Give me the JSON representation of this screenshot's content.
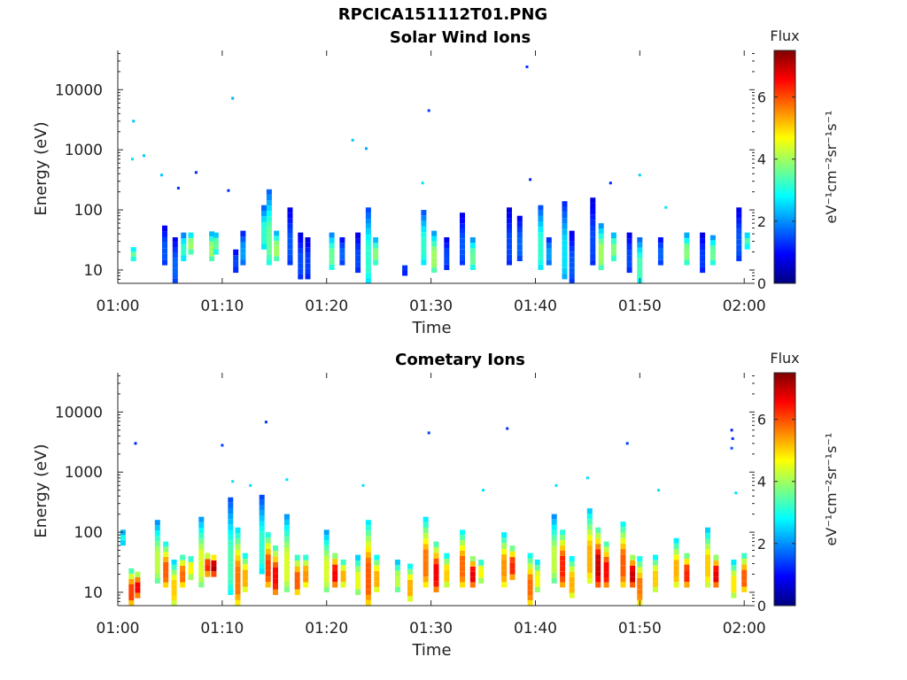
{
  "figure_title": "RPCICA151112T01.PNG",
  "chart_data": [
    {
      "type": "heatmap",
      "title": "Solar Wind Ions",
      "xlabel": "Time",
      "ylabel": "Energy (eV)",
      "xticks": [
        "01:00",
        "01:10",
        "01:20",
        "01:30",
        "01:40",
        "01:50",
        "02:00"
      ],
      "xlim_minutes": [
        0,
        61
      ],
      "yticks": [
        {
          "v": 10,
          "label": "10"
        },
        {
          "v": 100,
          "label": "100"
        },
        {
          "v": 1000,
          "label": "1000"
        },
        {
          "v": 10000,
          "label": "10000"
        }
      ],
      "yscale": "log",
      "ylim": [
        6,
        45000
      ],
      "colorbar": {
        "title": "Flux",
        "label": "eV⁻¹cm⁻²sr⁻¹s⁻¹",
        "range": [
          0,
          7.5
        ],
        "ticks": [
          "0",
          "2",
          "4",
          "6"
        ],
        "colormap": "jet"
      },
      "columns": [
        {
          "t": 1.5,
          "lo": 14,
          "hi": 24,
          "v": 3.4
        },
        {
          "t": 4.5,
          "lo": 12,
          "hi": 55,
          "v": 1.5
        },
        {
          "t": 5.5,
          "lo": 6,
          "hi": 35,
          "v": 1.6
        },
        {
          "t": 6.3,
          "lo": 14,
          "hi": 42,
          "v": 3.0
        },
        {
          "t": 7.0,
          "lo": 18,
          "hi": 42,
          "v": 3.8
        },
        {
          "t": 9.0,
          "lo": 14,
          "hi": 44,
          "v": 3.8
        },
        {
          "t": 9.4,
          "lo": 18,
          "hi": 42,
          "v": 3.4
        },
        {
          "t": 11.3,
          "lo": 9,
          "hi": 22,
          "v": 1.4
        },
        {
          "t": 12.0,
          "lo": 12,
          "hi": 45,
          "v": 2.0
        },
        {
          "t": 14.0,
          "lo": 22,
          "hi": 120,
          "v": 3.0
        },
        {
          "t": 14.5,
          "lo": 12,
          "hi": 220,
          "v": 3.4
        },
        {
          "t": 15.2,
          "lo": 14,
          "hi": 45,
          "v": 3.8
        },
        {
          "t": 16.5,
          "lo": 12,
          "hi": 110,
          "v": 1.5
        },
        {
          "t": 17.5,
          "lo": 7,
          "hi": 42,
          "v": 1.4
        },
        {
          "t": 18.2,
          "lo": 7,
          "hi": 35,
          "v": 1.3
        },
        {
          "t": 20.5,
          "lo": 10,
          "hi": 42,
          "v": 3.4
        },
        {
          "t": 21.5,
          "lo": 12,
          "hi": 35,
          "v": 1.6
        },
        {
          "t": 23.0,
          "lo": 9,
          "hi": 42,
          "v": 1.4
        },
        {
          "t": 24.0,
          "lo": 6,
          "hi": 110,
          "v": 3.0
        },
        {
          "t": 24.7,
          "lo": 12,
          "hi": 35,
          "v": 3.6
        },
        {
          "t": 27.5,
          "lo": 8,
          "hi": 12,
          "v": 1.3
        },
        {
          "t": 29.3,
          "lo": 12,
          "hi": 100,
          "v": 3.0
        },
        {
          "t": 30.3,
          "lo": 9,
          "hi": 45,
          "v": 3.8
        },
        {
          "t": 31.5,
          "lo": 10,
          "hi": 35,
          "v": 1.4
        },
        {
          "t": 33.0,
          "lo": 12,
          "hi": 90,
          "v": 1.5
        },
        {
          "t": 34.0,
          "lo": 10,
          "hi": 35,
          "v": 3.4
        },
        {
          "t": 37.5,
          "lo": 12,
          "hi": 110,
          "v": 1.4
        },
        {
          "t": 38.5,
          "lo": 14,
          "hi": 80,
          "v": 1.6
        },
        {
          "t": 40.5,
          "lo": 10,
          "hi": 120,
          "v": 3.0
        },
        {
          "t": 41.3,
          "lo": 12,
          "hi": 35,
          "v": 2.0
        },
        {
          "t": 42.8,
          "lo": 7,
          "hi": 140,
          "v": 2.5
        },
        {
          "t": 43.5,
          "lo": 6,
          "hi": 45,
          "v": 1.5
        },
        {
          "t": 45.5,
          "lo": 12,
          "hi": 160,
          "v": 1.4
        },
        {
          "t": 46.3,
          "lo": 10,
          "hi": 60,
          "v": 3.8
        },
        {
          "t": 47.5,
          "lo": 14,
          "hi": 42,
          "v": 3.6
        },
        {
          "t": 49.0,
          "lo": 9,
          "hi": 42,
          "v": 1.4
        },
        {
          "t": 50.0,
          "lo": 6,
          "hi": 35,
          "v": 3.2
        },
        {
          "t": 52.0,
          "lo": 12,
          "hi": 35,
          "v": 1.6
        },
        {
          "t": 54.5,
          "lo": 12,
          "hi": 42,
          "v": 3.6
        },
        {
          "t": 56.0,
          "lo": 9,
          "hi": 42,
          "v": 1.3
        },
        {
          "t": 57.0,
          "lo": 12,
          "hi": 38,
          "v": 3.4
        },
        {
          "t": 59.5,
          "lo": 14,
          "hi": 110,
          "v": 1.5
        },
        {
          "t": 60.3,
          "lo": 22,
          "hi": 42,
          "v": 3.2
        }
      ],
      "points": [
        {
          "t": 1.5,
          "e": 3000,
          "v": 2.4
        },
        {
          "t": 1.4,
          "e": 700,
          "v": 2.6
        },
        {
          "t": 2.5,
          "e": 800,
          "v": 2.4
        },
        {
          "t": 4.2,
          "e": 380,
          "v": 2.4
        },
        {
          "t": 5.8,
          "e": 230,
          "v": 1.3
        },
        {
          "t": 7.5,
          "e": 420,
          "v": 1.2
        },
        {
          "t": 11.0,
          "e": 7200,
          "v": 2.2
        },
        {
          "t": 10.6,
          "e": 210,
          "v": 1.2
        },
        {
          "t": 22.5,
          "e": 1450,
          "v": 2.4
        },
        {
          "t": 23.8,
          "e": 1050,
          "v": 2.2
        },
        {
          "t": 29.8,
          "e": 4500,
          "v": 1.4
        },
        {
          "t": 29.2,
          "e": 280,
          "v": 2.6
        },
        {
          "t": 39.2,
          "e": 24000,
          "v": 1.3
        },
        {
          "t": 39.5,
          "e": 320,
          "v": 1.2
        },
        {
          "t": 47.2,
          "e": 280,
          "v": 1.2
        },
        {
          "t": 50.0,
          "e": 380,
          "v": 2.5
        },
        {
          "t": 52.5,
          "e": 110,
          "v": 2.6
        }
      ]
    },
    {
      "type": "heatmap",
      "title": "Cometary Ions",
      "xlabel": "Time",
      "ylabel": "Energy (eV)",
      "xticks": [
        "01:00",
        "01:10",
        "01:20",
        "01:30",
        "01:40",
        "01:50",
        "02:00"
      ],
      "xlim_minutes": [
        0,
        61
      ],
      "yticks": [
        {
          "v": 10,
          "label": "10"
        },
        {
          "v": 100,
          "label": "100"
        },
        {
          "v": 1000,
          "label": "1000"
        },
        {
          "v": 10000,
          "label": "10000"
        }
      ],
      "yscale": "log",
      "ylim": [
        6,
        45000
      ],
      "colorbar": {
        "title": "Flux",
        "label": "eV⁻¹cm⁻²sr⁻¹s⁻¹",
        "range": [
          0,
          7.5
        ],
        "ticks": [
          "0",
          "2",
          "4",
          "6"
        ],
        "colormap": "jet"
      },
      "columns": [
        {
          "t": 0.5,
          "lo": 60,
          "hi": 110,
          "v": 2.8
        },
        {
          "t": 1.3,
          "lo": 6,
          "hi": 25,
          "v": 5.8
        },
        {
          "t": 1.9,
          "lo": 8,
          "hi": 22,
          "v": 6.3
        },
        {
          "t": 3.8,
          "lo": 14,
          "hi": 160,
          "v": 4.0
        },
        {
          "t": 4.6,
          "lo": 12,
          "hi": 70,
          "v": 5.6
        },
        {
          "t": 5.4,
          "lo": 6,
          "hi": 35,
          "v": 4.8
        },
        {
          "t": 6.2,
          "lo": 12,
          "hi": 42,
          "v": 5.5
        },
        {
          "t": 7.0,
          "lo": 16,
          "hi": 40,
          "v": 4.5
        },
        {
          "t": 8.0,
          "lo": 12,
          "hi": 180,
          "v": 4.2
        },
        {
          "t": 8.6,
          "lo": 18,
          "hi": 45,
          "v": 6.0
        },
        {
          "t": 9.2,
          "lo": 18,
          "hi": 42,
          "v": 6.8
        },
        {
          "t": 10.8,
          "lo": 9,
          "hi": 380,
          "v": 3.2
        },
        {
          "t": 11.5,
          "lo": 6,
          "hi": 120,
          "v": 5.4
        },
        {
          "t": 12.2,
          "lo": 10,
          "hi": 45,
          "v": 5.0
        },
        {
          "t": 13.8,
          "lo": 20,
          "hi": 420,
          "v": 3.0
        },
        {
          "t": 14.4,
          "lo": 12,
          "hi": 100,
          "v": 5.8
        },
        {
          "t": 15.1,
          "lo": 9,
          "hi": 60,
          "v": 6.2
        },
        {
          "t": 16.2,
          "lo": 10,
          "hi": 200,
          "v": 4.2
        },
        {
          "t": 17.2,
          "lo": 9,
          "hi": 42,
          "v": 5.6
        },
        {
          "t": 18.0,
          "lo": 12,
          "hi": 42,
          "v": 5.2
        },
        {
          "t": 20.0,
          "lo": 10,
          "hi": 110,
          "v": 4.2
        },
        {
          "t": 20.8,
          "lo": 12,
          "hi": 45,
          "v": 6.3
        },
        {
          "t": 21.6,
          "lo": 12,
          "hi": 35,
          "v": 5.0
        },
        {
          "t": 23.0,
          "lo": 9,
          "hi": 42,
          "v": 4.3
        },
        {
          "t": 24.0,
          "lo": 6,
          "hi": 160,
          "v": 5.6
        },
        {
          "t": 24.8,
          "lo": 10,
          "hi": 42,
          "v": 5.0
        },
        {
          "t": 26.8,
          "lo": 10,
          "hi": 35,
          "v": 4.0
        },
        {
          "t": 28.0,
          "lo": 7,
          "hi": 30,
          "v": 5.0
        },
        {
          "t": 29.5,
          "lo": 12,
          "hi": 180,
          "v": 5.4
        },
        {
          "t": 30.5,
          "lo": 10,
          "hi": 70,
          "v": 6.3
        },
        {
          "t": 31.5,
          "lo": 12,
          "hi": 45,
          "v": 4.8
        },
        {
          "t": 33.0,
          "lo": 12,
          "hi": 110,
          "v": 5.5
        },
        {
          "t": 34.0,
          "lo": 12,
          "hi": 40,
          "v": 6.4
        },
        {
          "t": 34.8,
          "lo": 14,
          "hi": 35,
          "v": 4.5
        },
        {
          "t": 37.0,
          "lo": 12,
          "hi": 100,
          "v": 5.2
        },
        {
          "t": 37.8,
          "lo": 16,
          "hi": 60,
          "v": 6.0
        },
        {
          "t": 39.5,
          "lo": 6,
          "hi": 45,
          "v": 5.5
        },
        {
          "t": 40.2,
          "lo": 10,
          "hi": 35,
          "v": 4.4
        },
        {
          "t": 41.8,
          "lo": 14,
          "hi": 200,
          "v": 4.0
        },
        {
          "t": 42.6,
          "lo": 12,
          "hi": 110,
          "v": 6.0
        },
        {
          "t": 43.5,
          "lo": 8,
          "hi": 40,
          "v": 5.0
        },
        {
          "t": 45.2,
          "lo": 14,
          "hi": 250,
          "v": 5.0
        },
        {
          "t": 46.0,
          "lo": 12,
          "hi": 120,
          "v": 6.6
        },
        {
          "t": 46.8,
          "lo": 12,
          "hi": 70,
          "v": 6.2
        },
        {
          "t": 48.4,
          "lo": 12,
          "hi": 150,
          "v": 5.6
        },
        {
          "t": 49.3,
          "lo": 12,
          "hi": 42,
          "v": 6.6
        },
        {
          "t": 50.0,
          "lo": 6,
          "hi": 40,
          "v": 5.4
        },
        {
          "t": 51.5,
          "lo": 10,
          "hi": 42,
          "v": 4.8
        },
        {
          "t": 53.5,
          "lo": 12,
          "hi": 80,
          "v": 5.0
        },
        {
          "t": 54.5,
          "lo": 12,
          "hi": 45,
          "v": 6.0
        },
        {
          "t": 56.5,
          "lo": 12,
          "hi": 120,
          "v": 4.8
        },
        {
          "t": 57.3,
          "lo": 12,
          "hi": 42,
          "v": 6.4
        },
        {
          "t": 59.0,
          "lo": 8,
          "hi": 35,
          "v": 4.6
        },
        {
          "t": 60.0,
          "lo": 10,
          "hi": 45,
          "v": 5.6
        }
      ],
      "points": [
        {
          "t": 1.7,
          "e": 3000,
          "v": 1.2
        },
        {
          "t": 10.0,
          "e": 2800,
          "v": 1.4
        },
        {
          "t": 14.2,
          "e": 6800,
          "v": 1.3
        },
        {
          "t": 29.8,
          "e": 4500,
          "v": 1.4
        },
        {
          "t": 37.3,
          "e": 5300,
          "v": 1.3
        },
        {
          "t": 48.8,
          "e": 3000,
          "v": 1.4
        },
        {
          "t": 58.8,
          "e": 5000,
          "v": 1.2
        },
        {
          "t": 58.9,
          "e": 3600,
          "v": 1.3
        },
        {
          "t": 58.8,
          "e": 2500,
          "v": 1.6
        },
        {
          "t": 11.0,
          "e": 700,
          "v": 2.6
        },
        {
          "t": 12.7,
          "e": 600,
          "v": 2.6
        },
        {
          "t": 16.2,
          "e": 750,
          "v": 2.6
        },
        {
          "t": 23.5,
          "e": 600,
          "v": 2.6
        },
        {
          "t": 35.0,
          "e": 500,
          "v": 2.6
        },
        {
          "t": 42.0,
          "e": 600,
          "v": 2.6
        },
        {
          "t": 45.0,
          "e": 800,
          "v": 2.6
        },
        {
          "t": 51.8,
          "e": 500,
          "v": 2.6
        },
        {
          "t": 59.2,
          "e": 450,
          "v": 2.6
        }
      ]
    }
  ]
}
